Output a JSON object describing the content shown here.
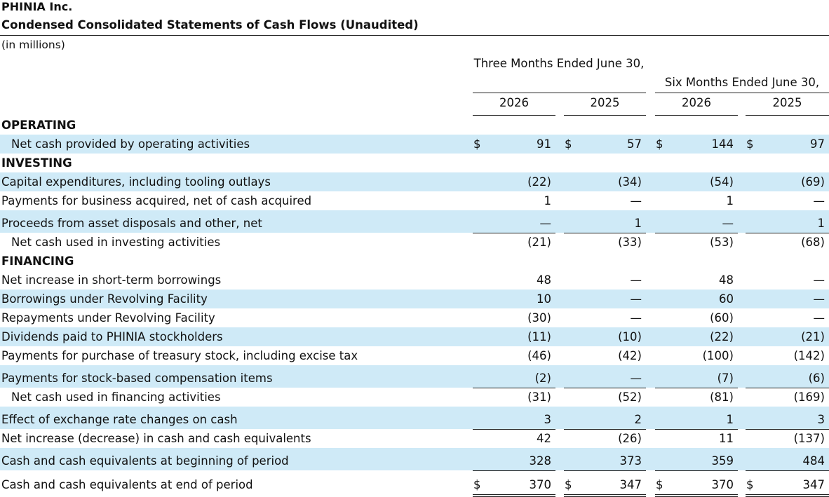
{
  "company": "PHINIA Inc.",
  "title": "Condensed Consolidated Statements of Cash Flows (Unaudited)",
  "units": "(in millions)",
  "periods": {
    "three_months": "Three Months Ended June 30,",
    "six_months": "Six Months Ended June 30,"
  },
  "years": [
    "2026",
    "2025",
    "2026",
    "2025"
  ],
  "currency_symbol": "$",
  "rows": [
    {
      "label": "OPERATING",
      "section": true
    },
    {
      "label": "Net cash provided by operating activities",
      "indent": true,
      "values": [
        "91",
        "57",
        "144",
        "97"
      ],
      "dollar": true
    },
    {
      "label": "INVESTING",
      "section": true
    },
    {
      "label": "Capital expenditures, including tooling outlays",
      "values": [
        "(22)",
        "(34)",
        "(54)",
        "(69)"
      ]
    },
    {
      "label": "Payments for business acquired, net of cash acquired",
      "values": [
        "1",
        "—",
        "1",
        "—"
      ]
    },
    {
      "label": "Proceeds from asset disposals and other, net",
      "values": [
        "—",
        "1",
        "—",
        "1"
      ]
    },
    {
      "label": "Net cash used in investing activities",
      "indent": true,
      "values": [
        "(21)",
        "(33)",
        "(53)",
        "(68)"
      ]
    },
    {
      "label": "FINANCING",
      "section": true
    },
    {
      "label": "Net increase in short-term borrowings",
      "values": [
        "48",
        "—",
        "48",
        "—"
      ]
    },
    {
      "label": "Borrowings under Revolving Facility",
      "values": [
        "10",
        "—",
        "60",
        "—"
      ]
    },
    {
      "label": "Repayments under Revolving Facility",
      "values": [
        "(30)",
        "—",
        "(60)",
        "—"
      ]
    },
    {
      "label": "Dividends paid to PHINIA stockholders",
      "values": [
        "(11)",
        "(10)",
        "(22)",
        "(21)"
      ]
    },
    {
      "label": "Payments for purchase of treasury stock, including excise tax",
      "values": [
        "(46)",
        "(42)",
        "(100)",
        "(142)"
      ]
    },
    {
      "label": "Payments for stock-based compensation items",
      "values": [
        "(2)",
        "—",
        "(7)",
        "(6)"
      ]
    },
    {
      "label": "Net cash used in financing activities",
      "indent": true,
      "values": [
        "(31)",
        "(52)",
        "(81)",
        "(169)"
      ]
    },
    {
      "label": "Effect of exchange rate changes on cash",
      "values": [
        "3",
        "2",
        "1",
        "3"
      ]
    },
    {
      "label": "Net increase (decrease) in cash and cash equivalents",
      "values": [
        "42",
        "(26)",
        "11",
        "(137)"
      ]
    },
    {
      "label": "Cash and cash equivalents at beginning of period",
      "values": [
        "328",
        "373",
        "359",
        "484"
      ]
    },
    {
      "label": "Cash and cash equivalents at end of period",
      "values": [
        "370",
        "347",
        "370",
        "347"
      ],
      "dollar": true
    }
  ]
}
